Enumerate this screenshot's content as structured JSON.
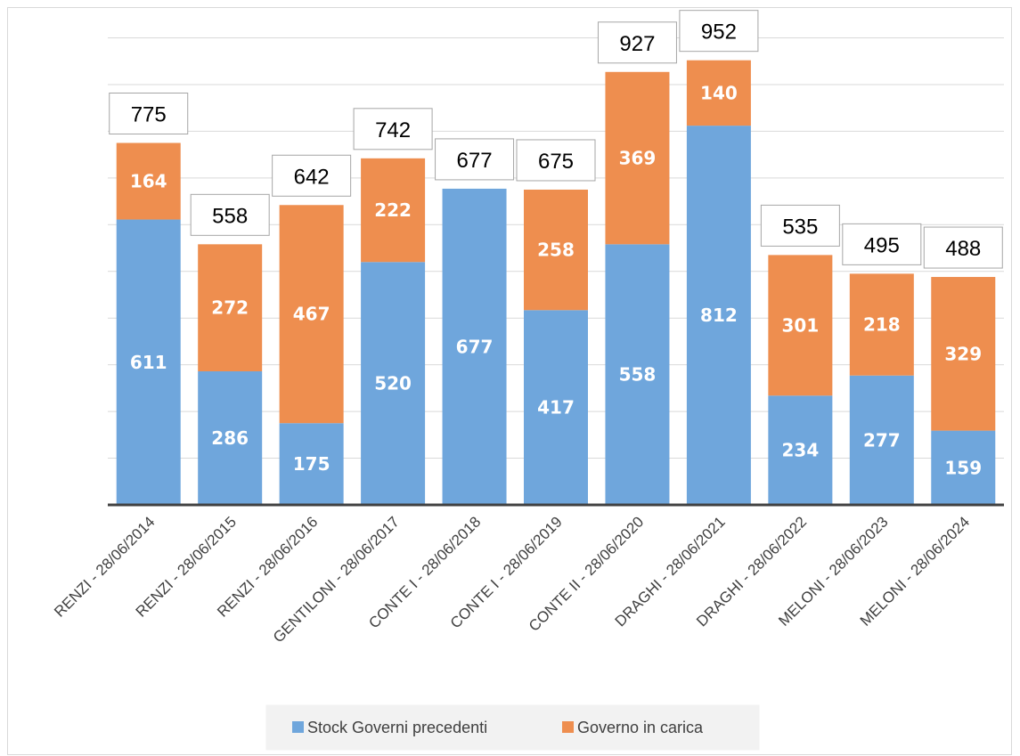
{
  "chart_data": {
    "type": "bar",
    "stacked": true,
    "categories": [
      "RENZI - 28/06/2014",
      "RENZI - 28/06/2015",
      "RENZI - 28/06/2016",
      "GENTILONI - 28/06/2017",
      "CONTE I - 28/06/2018",
      "CONTE I - 28/06/2019",
      "CONTE II - 28/06/2020",
      "DRAGHI - 28/06/2021",
      "DRAGHI - 28/06/2022",
      "MELONI - 28/06/2023",
      "MELONI - 28/06/2024"
    ],
    "series": [
      {
        "name": "Stock Governi precedenti",
        "color": "#6fa6dc",
        "values": [
          611,
          286,
          175,
          520,
          677,
          417,
          558,
          812,
          234,
          277,
          159
        ]
      },
      {
        "name": "Governo in carica",
        "color": "#ee8e4f",
        "values": [
          164,
          272,
          467,
          222,
          null,
          258,
          369,
          140,
          301,
          218,
          329
        ]
      }
    ],
    "totals": [
      775,
      558,
      642,
      742,
      677,
      675,
      927,
      952,
      535,
      495,
      488
    ],
    "ylim": [
      0,
      1000
    ],
    "grid": true,
    "legend_position": "bottom"
  }
}
